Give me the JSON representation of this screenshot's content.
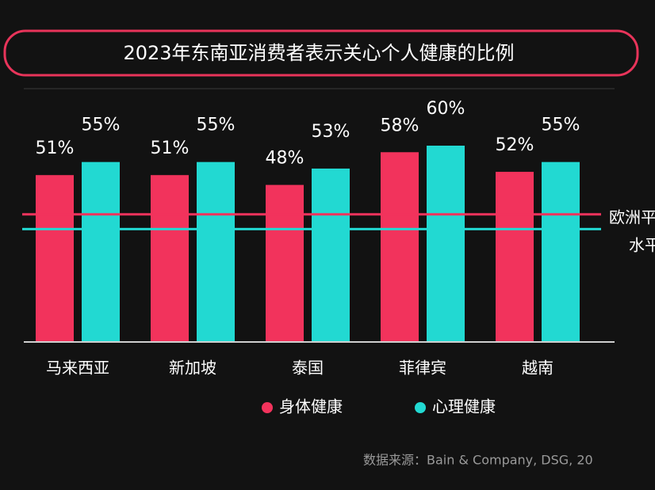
{
  "chart_data": {
    "type": "bar",
    "title": "2023年东南亚消费者表示关心个人健康的比例",
    "categories": [
      "马来西亚",
      "新加坡",
      "泰国",
      "菲律宾",
      "越南"
    ],
    "series": [
      {
        "name": "身体健康",
        "color": "#f2335c",
        "values": [
          51,
          51,
          48,
          58,
          52
        ],
        "value_labels": [
          "51%",
          "51%",
          "48%",
          "58%",
          "52%"
        ]
      },
      {
        "name": "心理健康",
        "color": "#22d9d2",
        "values": [
          55,
          55,
          53,
          60,
          55
        ],
        "value_labels": [
          "55%",
          "55%",
          "53%",
          "60%",
          "55%"
        ]
      }
    ],
    "reference_lines": [
      {
        "value": 39,
        "color": "#f2335c"
      },
      {
        "value": 34.5,
        "color": "#22d9d2"
      }
    ],
    "reference_label": [
      "欧洲平",
      "水平"
    ],
    "ylim": [
      0,
      60
    ],
    "source": "数据来源：Bain & Company, DSG, 20"
  }
}
